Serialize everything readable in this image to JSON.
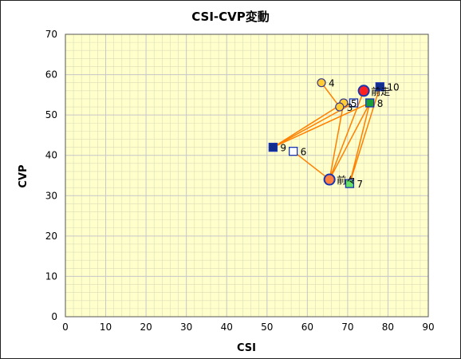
{
  "chart_data": {
    "type": "scatter",
    "title": "CSI-CVP変動",
    "xlabel": "CSI",
    "ylabel": "CVP",
    "xlim": [
      0,
      90
    ],
    "ylim": [
      0,
      70
    ],
    "x_ticks": [
      0,
      10,
      20,
      30,
      40,
      50,
      60,
      70,
      80,
      90
    ],
    "y_ticks": [
      0,
      10,
      20,
      30,
      40,
      50,
      60,
      70
    ],
    "grid": true,
    "colors": {
      "plot_bg": "#ffffcc",
      "major_grid": "#c8c8c8",
      "minor_grid": "#dcdcb8",
      "line": "#ff7f00",
      "red_circle": "#ff2020",
      "orange_circle": "#ff8040",
      "yellow_circle": "#ffcc33",
      "navy_square": "#0f2d8c",
      "green_square": "#1a9e3a",
      "lightgreen_square": "#66e066",
      "white_square": "#ffffff",
      "marker_edge": "#1a35b0"
    },
    "points": [
      {
        "label": "4",
        "x": 63.5,
        "y": 58,
        "marker": "circle",
        "color": "yellow_circle"
      },
      {
        "label": "10",
        "x": 78,
        "y": 57,
        "marker": "square",
        "color": "navy_square"
      },
      {
        "label": "前走",
        "x": 74,
        "y": 56,
        "marker": "circle",
        "color": "red_circle"
      },
      {
        "label": "8",
        "x": 75.5,
        "y": 53,
        "marker": "square",
        "color": "green_square"
      },
      {
        "label": "5",
        "x": 69,
        "y": 53,
        "marker": "circle",
        "color": "yellow_circle"
      },
      {
        "label": "",
        "x": 71.5,
        "y": 53,
        "marker": "square",
        "color": "white_square"
      },
      {
        "label": "3",
        "x": 68,
        "y": 52,
        "marker": "circle",
        "color": "yellow_circle"
      },
      {
        "label": "9",
        "x": 51.5,
        "y": 42,
        "marker": "square",
        "color": "navy_square"
      },
      {
        "label": "6",
        "x": 56.5,
        "y": 41,
        "marker": "square",
        "color": "white_square"
      },
      {
        "label": "前々",
        "x": 65.5,
        "y": 34,
        "marker": "circle",
        "color": "orange_circle"
      },
      {
        "label": "7",
        "x": 70.5,
        "y": 33,
        "marker": "square",
        "color": "lightgreen_square"
      }
    ],
    "connection_lines": [
      [
        [
          65.5,
          34
        ],
        [
          74,
          56
        ]
      ],
      [
        [
          65.5,
          34
        ],
        [
          56.5,
          41
        ]
      ],
      [
        [
          65.5,
          34
        ],
        [
          69,
          53
        ]
      ],
      [
        [
          65.5,
          34
        ],
        [
          75.5,
          53
        ]
      ],
      [
        [
          63.5,
          58
        ],
        [
          68,
          52
        ]
      ],
      [
        [
          51.5,
          42
        ],
        [
          71.5,
          53
        ]
      ],
      [
        [
          51.5,
          42
        ],
        [
          75.5,
          53
        ]
      ],
      [
        [
          51.5,
          42
        ],
        [
          69,
          53
        ]
      ],
      [
        [
          70.5,
          33
        ],
        [
          75.5,
          53
        ]
      ],
      [
        [
          70.5,
          33
        ],
        [
          78,
          57
        ]
      ]
    ]
  }
}
